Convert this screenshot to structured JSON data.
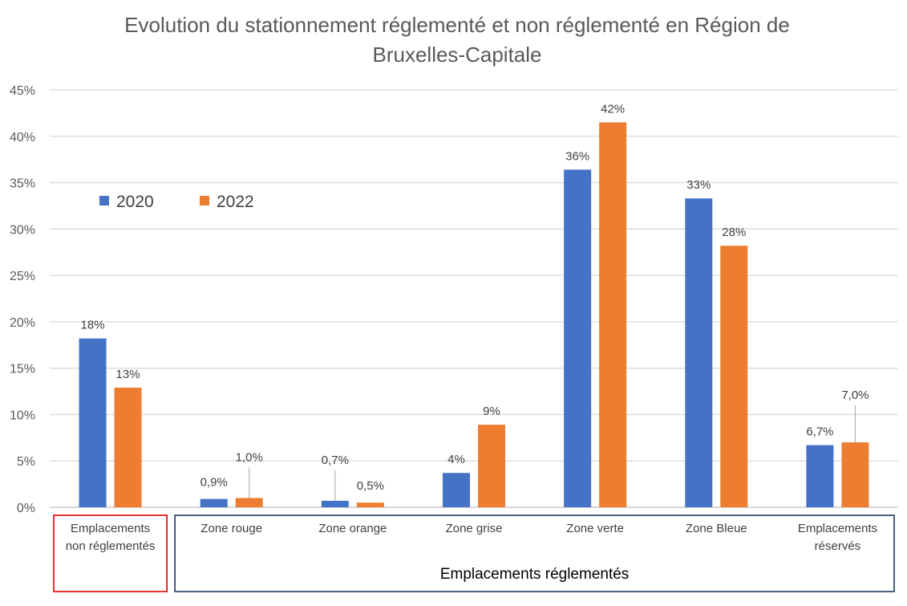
{
  "chart_data": {
    "type": "bar",
    "title_lines": [
      "Evolution du stationnement réglementé et non réglementé en Région de",
      "Bruxelles-Capitale"
    ],
    "categories": [
      [
        "Emplacements",
        "non réglementés"
      ],
      [
        "Zone rouge"
      ],
      [
        "Zone orange"
      ],
      [
        "Zone grise"
      ],
      [
        "Zone verte"
      ],
      [
        "Zone Bleue"
      ],
      [
        "Emplacements",
        "réservés"
      ]
    ],
    "series": [
      {
        "name": "2020",
        "color": "#4472C4",
        "values": [
          18.2,
          0.9,
          0.7,
          3.7,
          36.4,
          33.3,
          6.7
        ],
        "labels": [
          "18%",
          "0,9%",
          "0,7%",
          "4%",
          "36%",
          "33%",
          "6,7%"
        ]
      },
      {
        "name": "2022",
        "color": "#ED7D31",
        "values": [
          12.9,
          1.0,
          0.5,
          8.9,
          41.5,
          28.2,
          7.0
        ],
        "labels": [
          "13%",
          "1,0%",
          "0,5%",
          "9%",
          "42%",
          "28%",
          "7,0%"
        ]
      }
    ],
    "yticks": [
      "0%",
      "5%",
      "10%",
      "15%",
      "20%",
      "25%",
      "30%",
      "35%",
      "40%",
      "45%"
    ],
    "ylim": [
      0,
      45
    ],
    "grid": true,
    "legend_position": "top-left",
    "groups": [
      {
        "label": "",
        "categories": [
          0
        ],
        "border_color": "#E00000"
      },
      {
        "label": "Emplacements réglementés",
        "categories": [
          1,
          2,
          3,
          4,
          5,
          6
        ],
        "border_color": "#1F3864"
      }
    ]
  }
}
